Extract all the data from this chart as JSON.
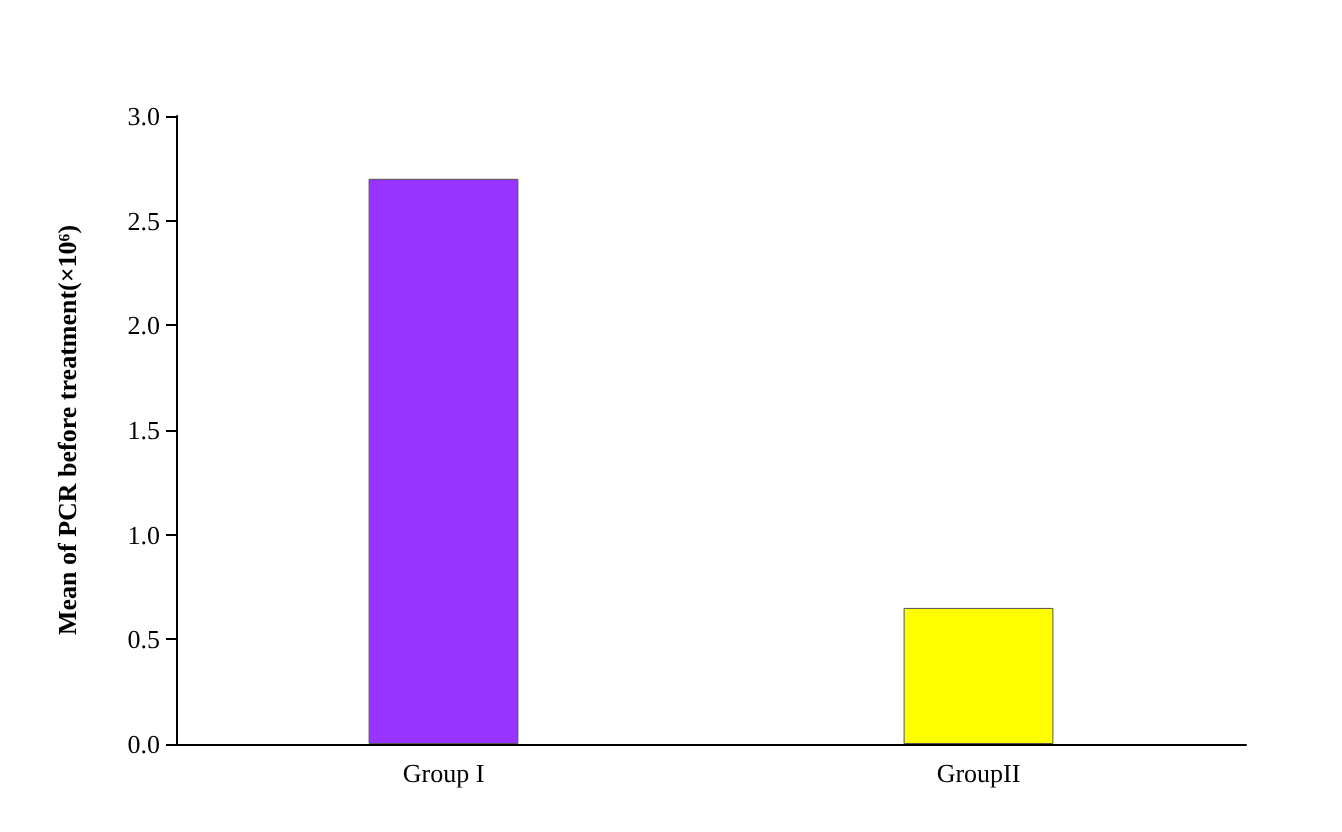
{
  "chart_data": {
    "type": "bar",
    "ylabel": "Mean of PCR before treatment(×10⁶)",
    "categories": [
      "Group I",
      "GroupII"
    ],
    "values": [
      2.7,
      0.65
    ],
    "colors": [
      "#9933ff",
      "#ffff00"
    ],
    "ylim": [
      0,
      3
    ],
    "yticks": [
      {
        "value": 0,
        "label": "0.0"
      },
      {
        "value": 0.5,
        "label": "0.5"
      },
      {
        "value": 1,
        "label": "1.0"
      },
      {
        "value": 1.5,
        "label": "1.5"
      },
      {
        "value": 2,
        "label": "2.0"
      },
      {
        "value": 2.5,
        "label": "2.5"
      },
      {
        "value": 3,
        "label": "3.0"
      }
    ],
    "grid": false
  }
}
